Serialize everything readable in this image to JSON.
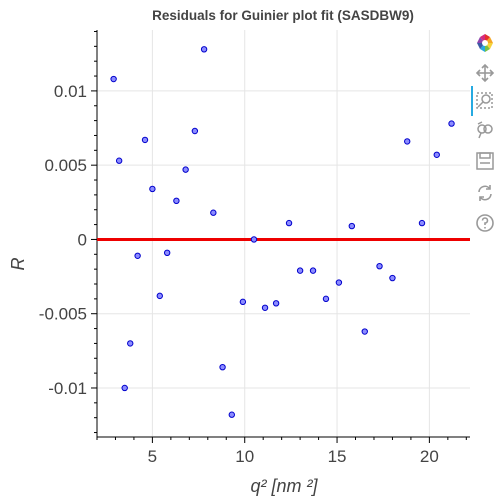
{
  "chart_data": {
    "type": "scatter",
    "title": "Residuals for Guinier plot fit (SASDBW9)",
    "xlabel": "q² [nm ²]",
    "ylabel": "R",
    "xlim": [
      2.0,
      22.2
    ],
    "ylim": [
      -0.0133,
      0.0141
    ],
    "x_ticks": [
      5,
      10,
      15,
      20
    ],
    "x_tick_labels": [
      "5",
      "10",
      "15",
      "20"
    ],
    "y_ticks": [
      0.01,
      0.005,
      0,
      -0.005,
      -0.01
    ],
    "y_tick_labels": [
      "0.01",
      "0.005",
      "0",
      "-0.005",
      "-0.01"
    ],
    "grid": true,
    "reference_line": {
      "y": 0,
      "color": "#ee0000"
    },
    "marker_fill": "#8c8cff",
    "marker_stroke": "#0000cc",
    "points": [
      {
        "x": 2.9,
        "y": 0.0108
      },
      {
        "x": 3.2,
        "y": 0.0053
      },
      {
        "x": 3.5,
        "y": -0.01
      },
      {
        "x": 3.8,
        "y": -0.007
      },
      {
        "x": 4.2,
        "y": -0.0011
      },
      {
        "x": 4.6,
        "y": 0.0067
      },
      {
        "x": 5.0,
        "y": 0.0034
      },
      {
        "x": 5.4,
        "y": -0.0038
      },
      {
        "x": 5.8,
        "y": -0.0009
      },
      {
        "x": 6.3,
        "y": 0.0026
      },
      {
        "x": 6.8,
        "y": 0.0047
      },
      {
        "x": 7.3,
        "y": 0.0073
      },
      {
        "x": 7.8,
        "y": 0.0128
      },
      {
        "x": 8.3,
        "y": 0.0018
      },
      {
        "x": 8.8,
        "y": -0.0086
      },
      {
        "x": 9.3,
        "y": -0.0118
      },
      {
        "x": 9.9,
        "y": -0.0042
      },
      {
        "x": 10.5,
        "y": 0.0
      },
      {
        "x": 11.1,
        "y": -0.0046
      },
      {
        "x": 11.7,
        "y": -0.0043
      },
      {
        "x": 12.4,
        "y": 0.0011
      },
      {
        "x": 13.0,
        "y": -0.0021
      },
      {
        "x": 13.7,
        "y": -0.0021
      },
      {
        "x": 14.4,
        "y": -0.004
      },
      {
        "x": 15.1,
        "y": -0.0029
      },
      {
        "x": 15.8,
        "y": 0.0009
      },
      {
        "x": 16.5,
        "y": -0.0062
      },
      {
        "x": 17.3,
        "y": -0.0018
      },
      {
        "x": 18.0,
        "y": -0.0026
      },
      {
        "x": 18.8,
        "y": 0.0066
      },
      {
        "x": 19.6,
        "y": 0.0011
      },
      {
        "x": 20.4,
        "y": 0.0057
      },
      {
        "x": 21.2,
        "y": 0.0078
      }
    ]
  },
  "toolbar": {
    "tools": [
      {
        "name": "bokeh-logo-icon",
        "active": false
      },
      {
        "name": "pan-icon",
        "active": true
      },
      {
        "name": "box-zoom-icon",
        "active": false
      },
      {
        "name": "wheel-zoom-icon",
        "active": false
      },
      {
        "name": "save-icon",
        "active": false
      },
      {
        "name": "reset-icon",
        "active": false
      },
      {
        "name": "help-icon",
        "active": false
      }
    ]
  }
}
